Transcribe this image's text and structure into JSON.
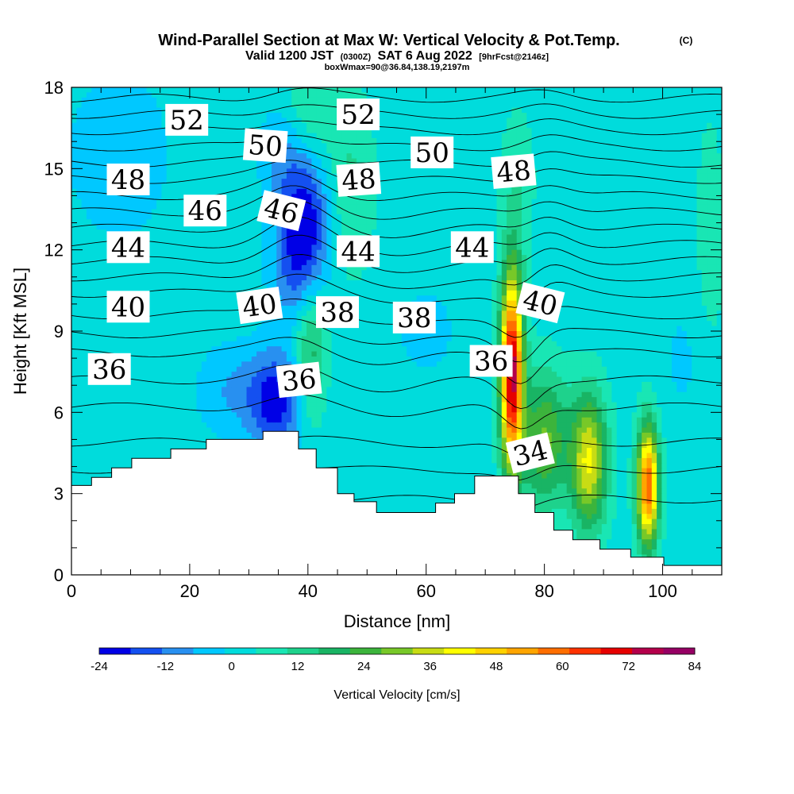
{
  "header": {
    "title": "Wind-Parallel Section at Max W: Vertical Velocity & Pot.Temp.",
    "copyright": "(C)",
    "valid_prefix": "Valid 1200 JST",
    "valid_utc": "(0300Z)",
    "valid_date": "SAT 6 Aug 2022",
    "forecast_info": "[9hrFcst@2146z]",
    "box_info": "boxWmax=90@36.84,138.19,2197m"
  },
  "chart_data": {
    "type": "heatmap",
    "xlabel": "Distance [nm]",
    "ylabel": "Height [Kft MSL]",
    "xlim": [
      0,
      110
    ],
    "ylim": [
      0,
      18
    ],
    "x_ticks": [
      0,
      20,
      40,
      60,
      80,
      100
    ],
    "y_ticks": [
      0,
      3,
      6,
      9,
      12,
      15,
      18
    ],
    "x_tick_labels": [
      "0",
      "20",
      "40",
      "60",
      "80",
      "100"
    ],
    "y_tick_labels": [
      "0",
      "3",
      "6",
      "9",
      "12",
      "15",
      "18"
    ],
    "colorbar": {
      "label": "Vertical Velocity [cm/s]",
      "min": -24,
      "max": 84,
      "step": 6,
      "tick_labels": [
        "-24",
        "-12",
        "0",
        "12",
        "24",
        "36",
        "48",
        "60",
        "72",
        "84"
      ],
      "colors": [
        "#0000e6",
        "#1450f0",
        "#2890f0",
        "#00c8ff",
        "#00dcdc",
        "#19e6b4",
        "#1ed28c",
        "#19b464",
        "#3cb43c",
        "#78c828",
        "#c8dc14",
        "#ffff00",
        "#ffd200",
        "#ffa500",
        "#ff6e00",
        "#ff3200",
        "#e60000",
        "#b4004b",
        "#960064"
      ]
    },
    "terrain": [
      {
        "x": 0,
        "y": 3.3
      },
      {
        "x": 3.4,
        "y": 3.6
      },
      {
        "x": 6.8,
        "y": 3.95
      },
      {
        "x": 10.2,
        "y": 4.3
      },
      {
        "x": 16.8,
        "y": 4.65
      },
      {
        "x": 22.8,
        "y": 5.0
      },
      {
        "x": 32.4,
        "y": 5.3
      },
      {
        "x": 38.4,
        "y": 4.65
      },
      {
        "x": 41.4,
        "y": 3.95
      },
      {
        "x": 45.0,
        "y": 3.0
      },
      {
        "x": 47.8,
        "y": 2.7
      },
      {
        "x": 51.6,
        "y": 2.3
      },
      {
        "x": 61.6,
        "y": 2.65
      },
      {
        "x": 64.8,
        "y": 3.0
      },
      {
        "x": 68.2,
        "y": 3.65
      },
      {
        "x": 75.6,
        "y": 3.0
      },
      {
        "x": 78.4,
        "y": 2.3
      },
      {
        "x": 81.6,
        "y": 1.65
      },
      {
        "x": 84.8,
        "y": 1.3
      },
      {
        "x": 89.4,
        "y": 0.95
      },
      {
        "x": 94.6,
        "y": 0.65
      },
      {
        "x": 100.2,
        "y": 0.35
      },
      {
        "x": 110,
        "y": 0.35
      }
    ],
    "w_features": [
      {
        "x": 34.5,
        "y": 6.4,
        "value": -24,
        "sx": 3.2,
        "sy": 1.3
      },
      {
        "x": 39.8,
        "y": 13.2,
        "value": -22,
        "sx": 3.0,
        "sy": 1.6
      },
      {
        "x": 38.0,
        "y": 11.2,
        "value": -14,
        "sx": 3.0,
        "sy": 1.4
      },
      {
        "x": 36.0,
        "y": 15.5,
        "value": -10,
        "sx": 2.8,
        "sy": 1.4
      },
      {
        "x": 8.0,
        "y": 15.5,
        "value": -6,
        "sx": 7.0,
        "sy": 2.5
      },
      {
        "x": 27.0,
        "y": 6.8,
        "value": -9,
        "sx": 4.0,
        "sy": 1.2
      },
      {
        "x": 60.0,
        "y": 9.0,
        "value": -5,
        "sx": 4.0,
        "sy": 1.3
      },
      {
        "x": 104.0,
        "y": 8.0,
        "value": -4,
        "sx": 3.5,
        "sy": 2.0
      },
      {
        "x": 40.5,
        "y": 8.2,
        "value": 18,
        "sx": 1.8,
        "sy": 1.8
      },
      {
        "x": 47.0,
        "y": 14.5,
        "value": 10,
        "sx": 3.0,
        "sy": 2.5
      },
      {
        "x": 40.0,
        "y": 17.2,
        "value": 10,
        "sx": 3.0,
        "sy": 1.2
      },
      {
        "x": 75.5,
        "y": 14.5,
        "value": 8,
        "sx": 2.0,
        "sy": 2.0
      },
      {
        "x": 74.5,
        "y": 7.5,
        "value": 78,
        "sx": 1.35,
        "sy": 2.6
      },
      {
        "x": 80.0,
        "y": 5.0,
        "value": 28,
        "sx": 2.8,
        "sy": 1.8
      },
      {
        "x": 87.5,
        "y": 4.2,
        "value": 40,
        "sx": 2.2,
        "sy": 1.8
      },
      {
        "x": 97.5,
        "y": 3.3,
        "value": 62,
        "sx": 1.3,
        "sy": 1.6
      },
      {
        "x": 108.0,
        "y": 12.0,
        "value": 6,
        "sx": 2.0,
        "sy": 4.0
      }
    ],
    "isentropes": [
      {
        "theta": 32,
        "base_y": 2.8
      },
      {
        "theta": 34,
        "base_y": 3.9
      },
      {
        "theta": 35,
        "base_y": 4.9
      },
      {
        "theta": 36,
        "base_y": 6.2
      },
      {
        "theta": 37,
        "base_y": 7.2
      },
      {
        "theta": 38,
        "base_y": 8.2
      },
      {
        "theta": 39,
        "base_y": 8.9
      },
      {
        "theta": 40,
        "base_y": 9.6
      },
      {
        "theta": 41,
        "base_y": 10.4
      },
      {
        "theta": 42,
        "base_y": 11.0
      },
      {
        "theta": 43,
        "base_y": 11.6
      },
      {
        "theta": 44,
        "base_y": 12.2
      },
      {
        "theta": 45,
        "base_y": 12.8
      },
      {
        "theta": 46,
        "base_y": 13.4
      },
      {
        "theta": 47,
        "base_y": 14.0
      },
      {
        "theta": 48,
        "base_y": 14.6
      },
      {
        "theta": 49,
        "base_y": 15.2
      },
      {
        "theta": 50,
        "base_y": 15.8
      },
      {
        "theta": 51,
        "base_y": 16.4
      },
      {
        "theta": 52,
        "base_y": 17.0
      },
      {
        "theta": 53,
        "base_y": 17.6
      }
    ],
    "isentrope_labels": [
      {
        "text": "52",
        "x": 19.5,
        "y": 16.8,
        "angle": 0
      },
      {
        "text": "52",
        "x": 48.5,
        "y": 17.0,
        "angle": 0
      },
      {
        "text": "50",
        "x": 32.8,
        "y": 15.85,
        "angle": 4
      },
      {
        "text": "50",
        "x": 61.0,
        "y": 15.6,
        "angle": 0
      },
      {
        "text": "48",
        "x": 9.6,
        "y": 14.6,
        "angle": 0
      },
      {
        "text": "48",
        "x": 48.6,
        "y": 14.6,
        "angle": -4
      },
      {
        "text": "48",
        "x": 74.8,
        "y": 14.9,
        "angle": -5
      },
      {
        "text": "46",
        "x": 22.6,
        "y": 13.45,
        "angle": 0
      },
      {
        "text": "46",
        "x": 35.5,
        "y": 13.45,
        "angle": 14
      },
      {
        "text": "44",
        "x": 9.6,
        "y": 12.1,
        "angle": 0
      },
      {
        "text": "44",
        "x": 48.5,
        "y": 11.95,
        "angle": 0
      },
      {
        "text": "44",
        "x": 67.8,
        "y": 12.1,
        "angle": 0
      },
      {
        "text": "40",
        "x": 9.6,
        "y": 9.9,
        "angle": 0
      },
      {
        "text": "40",
        "x": 31.8,
        "y": 9.95,
        "angle": -8
      },
      {
        "text": "40",
        "x": 79.3,
        "y": 10.05,
        "angle": 14
      },
      {
        "text": "38",
        "x": 45.0,
        "y": 9.7,
        "angle": 0
      },
      {
        "text": "38",
        "x": 58.0,
        "y": 9.5,
        "angle": 0
      },
      {
        "text": "36",
        "x": 6.4,
        "y": 7.6,
        "angle": 0
      },
      {
        "text": "36",
        "x": 38.5,
        "y": 7.2,
        "angle": -6
      },
      {
        "text": "36",
        "x": 71.0,
        "y": 7.9,
        "angle": 0
      },
      {
        "text": "34",
        "x": 77.6,
        "y": 4.5,
        "angle": -14
      }
    ]
  }
}
